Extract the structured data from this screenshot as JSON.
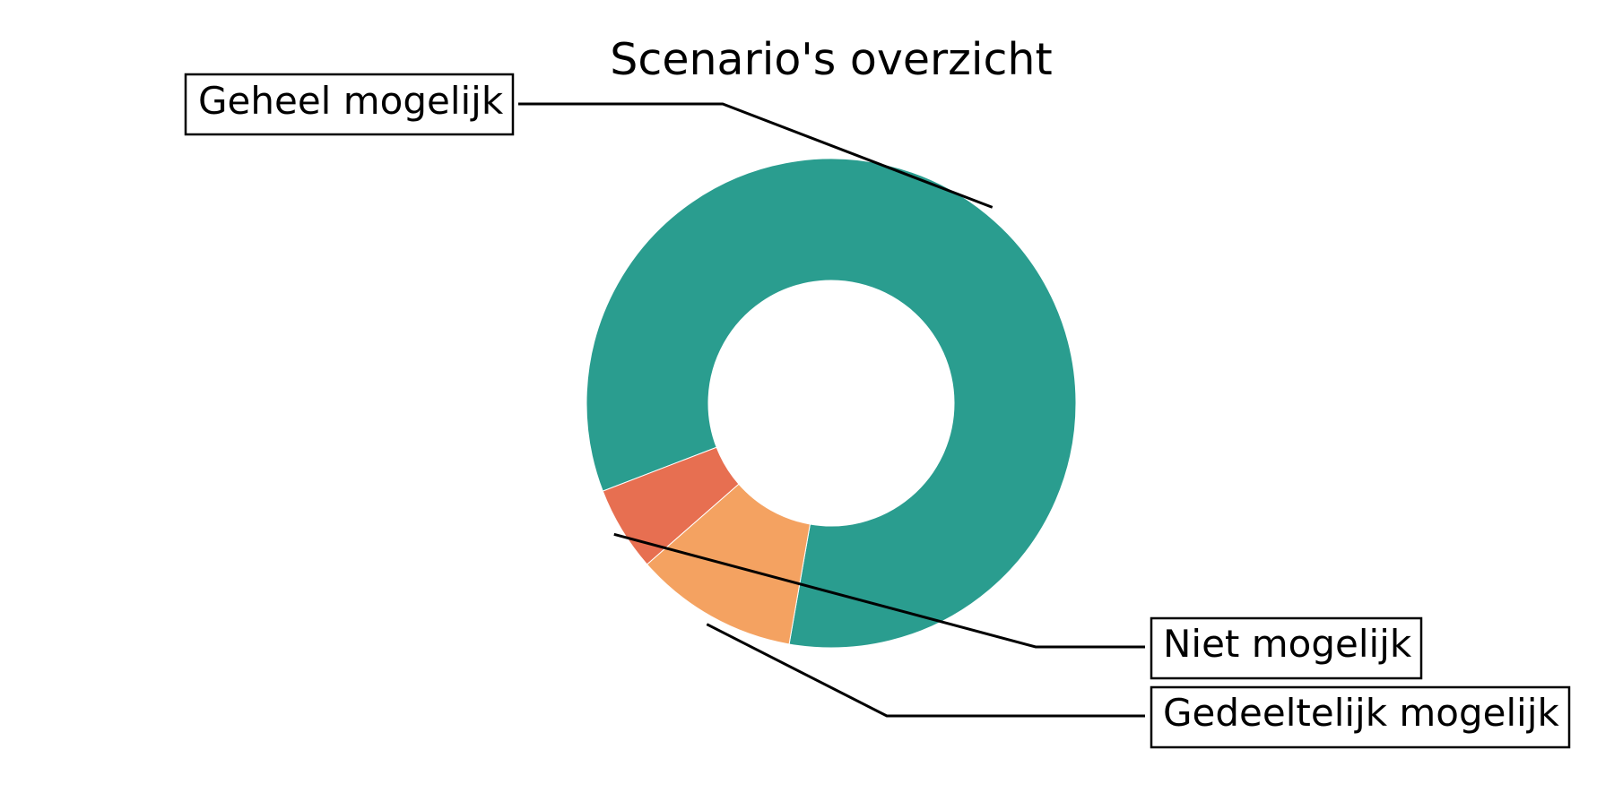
{
  "chart_data": {
    "type": "pie",
    "variant": "donut",
    "title": "Scenario's overzicht",
    "labels": [
      "Geheel mogelijk",
      "Niet mogelijk",
      "Gedeeltelijk mogelijk"
    ],
    "values": [
      83.6,
      5.6,
      10.8
    ],
    "colors": [
      "#2a9d8f",
      "#e76f51",
      "#f4a261"
    ],
    "legend": "none",
    "label_style": "boxed callouts with leader lines"
  }
}
